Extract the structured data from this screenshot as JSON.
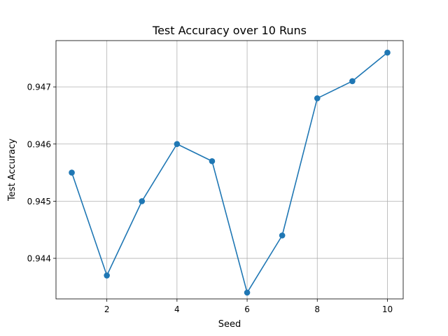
{
  "chart_data": {
    "type": "line",
    "title": "Test Accuracy over 10 Runs",
    "xlabel": "Seed",
    "ylabel": "Test Accuracy",
    "x": [
      1,
      2,
      3,
      4,
      5,
      6,
      7,
      8,
      9,
      10
    ],
    "series": [
      {
        "values": [
          0.9455,
          0.9437,
          0.945,
          0.946,
          0.9457,
          0.9434,
          0.9444,
          0.9468,
          0.9471,
          0.9476
        ],
        "color": "#1f77b4",
        "marker": "circle"
      }
    ],
    "xticks": [
      2,
      4,
      6,
      8,
      10
    ],
    "xtick_labels": [
      "2",
      "4",
      "6",
      "8",
      "10"
    ],
    "yticks": [
      0.944,
      0.945,
      0.946,
      0.947
    ],
    "ytick_labels": [
      "0.944",
      "0.945",
      "0.946",
      "0.947"
    ],
    "xlim": [
      0.55,
      10.45
    ],
    "ylim": [
      0.94329,
      0.94781
    ],
    "grid": true
  }
}
